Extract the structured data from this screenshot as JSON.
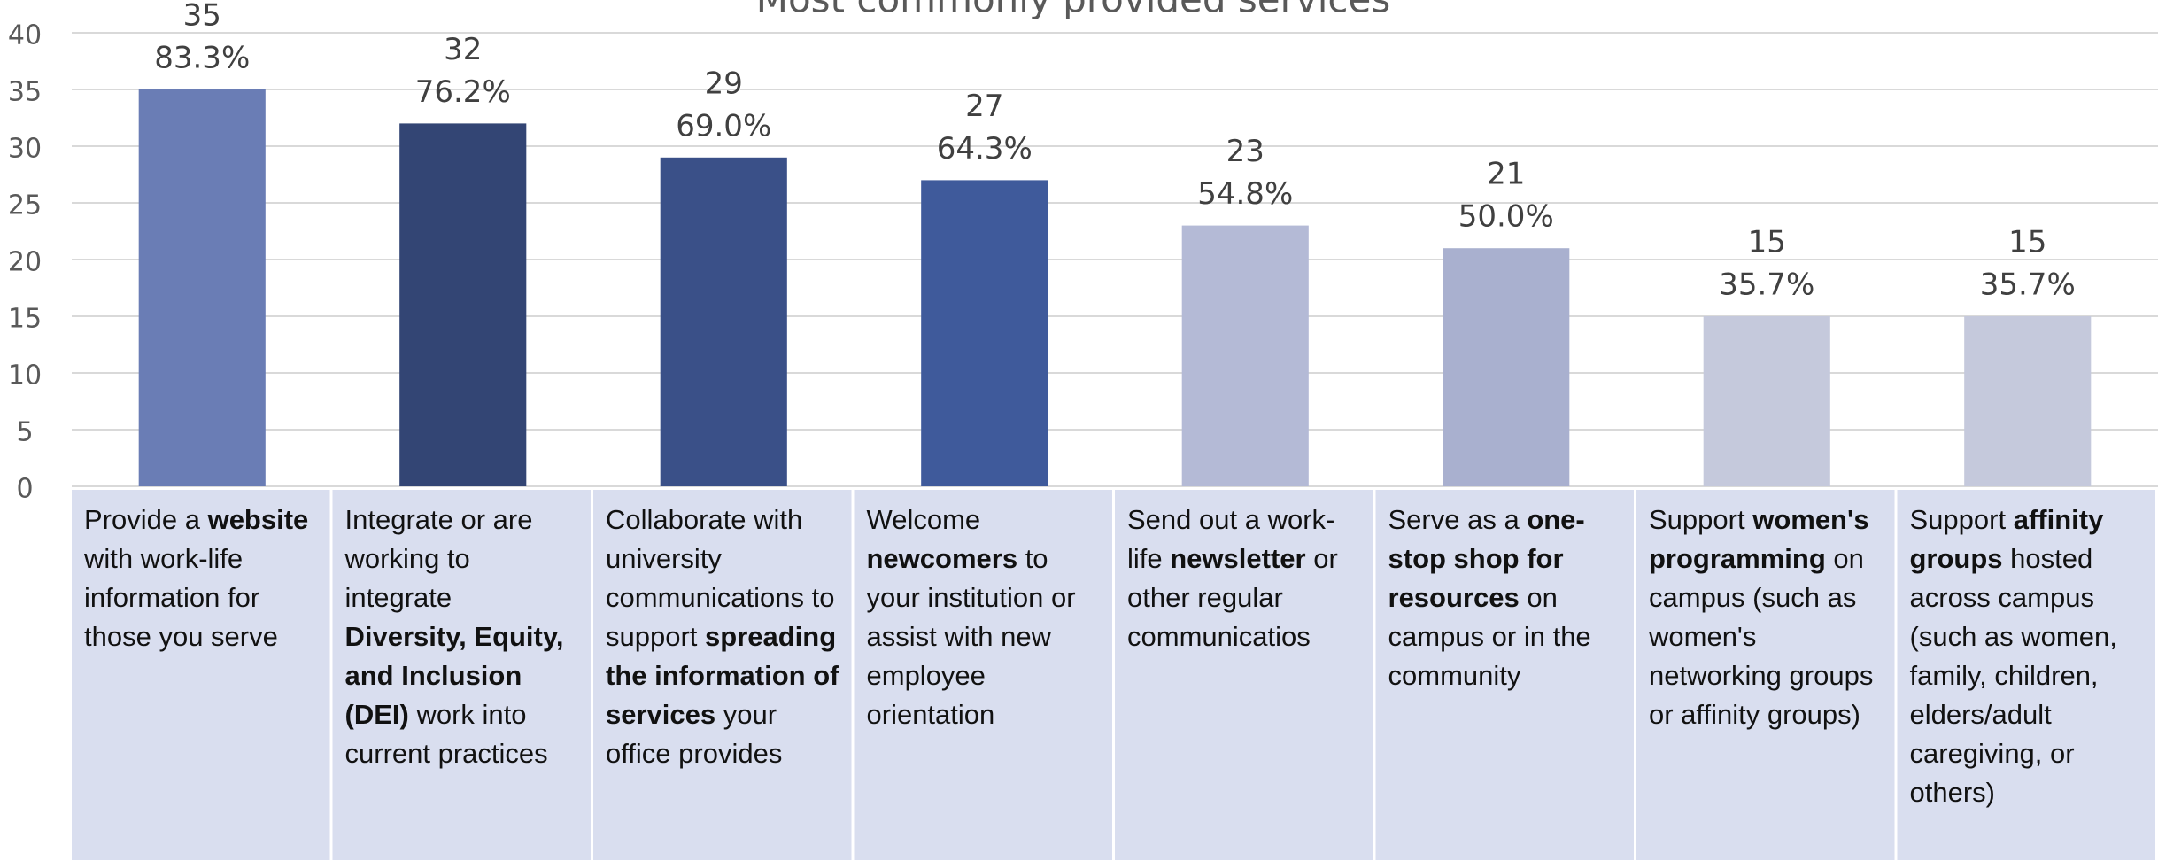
{
  "chart_data": {
    "type": "bar",
    "title": "Most commonly provided services",
    "categories": [
      [
        "Provide a ",
        "website",
        " with work-life information for those you serve"
      ],
      [
        "Integrate or are working to integrate ",
        "Diversity, Equity, and Inclusion (DEI)",
        " work into current practices"
      ],
      [
        "Collaborate with university communications to support ",
        "spreading the information of services",
        " your office provides"
      ],
      [
        "Welcome ",
        "newcomers",
        " to your institution or assist with new employee orientation"
      ],
      [
        "Send out a work-life ",
        "newsletter",
        " or other regular communicatios"
      ],
      [
        "Serve as a ",
        "one-stop shop for resources",
        " on campus or in the community"
      ],
      [
        "Support ",
        "women's programming",
        " on campus (such as women's networking groups or affinity groups)"
      ],
      [
        "Support ",
        "affinity groups",
        " hosted across campus (such as women, family, children, elders/adult caregiving, or others)"
      ]
    ],
    "values": [
      35,
      32,
      29,
      27,
      23,
      21,
      15,
      15
    ],
    "share_labels": [
      "83.3%",
      "76.2%",
      "69.0%",
      "64.3%",
      "54.8%",
      "50.0%",
      "35.7%",
      "35.7%"
    ],
    "colors": [
      "#6a7db5",
      "#334574",
      "#3a5088",
      "#3f5a9b",
      "#b4bad6",
      "#a9b0cf",
      "#c5c9dc",
      "#c5c9dc"
    ],
    "ylim": [
      0,
      40
    ],
    "yticks": [
      0,
      5,
      10,
      15,
      20,
      25,
      30,
      35,
      40
    ],
    "grid": true
  }
}
